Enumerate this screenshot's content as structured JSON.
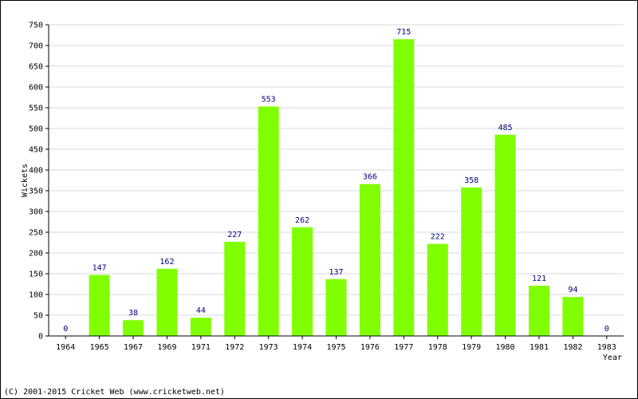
{
  "chart_data": {
    "type": "bar",
    "categories": [
      "1964",
      "1965",
      "1967",
      "1969",
      "1971",
      "1972",
      "1973",
      "1974",
      "1975",
      "1976",
      "1977",
      "1978",
      "1979",
      "1980",
      "1981",
      "1982",
      "1983"
    ],
    "series": [
      {
        "values": [
          0,
          147,
          38,
          162,
          44,
          227,
          553,
          262,
          137,
          366,
          715,
          222,
          358,
          485,
          121,
          94,
          0
        ]
      }
    ],
    "xlabel": "Year",
    "ylabel": "Wickets",
    "ylim": [
      0,
      750
    ],
    "yticks": [
      0,
      50,
      100,
      150,
      200,
      250,
      300,
      350,
      400,
      450,
      500,
      550,
      600,
      650,
      700,
      750
    ],
    "grid": true,
    "show_data_labels": true,
    "colors": {
      "bar": "#80ff00",
      "data_label": "#000080",
      "grid": "#d8d8d8",
      "axis": "#000000",
      "text": "#000000"
    }
  },
  "footer": {
    "copyright": "(C) 2001-2015 Cricket Web (www.cricketweb.net)"
  }
}
